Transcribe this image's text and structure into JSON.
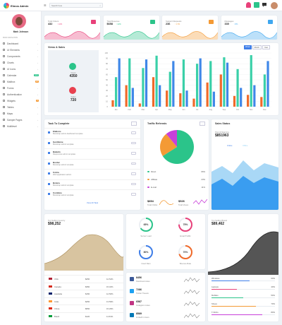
{
  "brand": {
    "name": "Elmos Admin"
  },
  "search": {
    "placeholder": "Search here"
  },
  "user": {
    "name": "Mark Johnson"
  },
  "sidebar": {
    "section": "MAIN NAVIGATION",
    "items": [
      {
        "label": "Dashboard",
        "badge": ""
      },
      {
        "label": "UI Elements",
        "badge": ""
      },
      {
        "label": "Components",
        "badge": ""
      },
      {
        "label": "Charts",
        "badge": ""
      },
      {
        "label": "UI Icons",
        "badge": ""
      },
      {
        "label": "Calendar",
        "badge": "new"
      },
      {
        "label": "Mailbox",
        "badge": "18"
      },
      {
        "label": "Forms",
        "badge": ""
      },
      {
        "label": "Authentication",
        "badge": ""
      },
      {
        "label": "Widgets",
        "badge": "6"
      },
      {
        "label": "Tables",
        "badge": ""
      },
      {
        "label": "Maps",
        "badge": ""
      },
      {
        "label": "Sample Pages",
        "badge": ""
      },
      {
        "label": "Multilevel",
        "badge": ""
      }
    ]
  },
  "stats": [
    {
      "title": "Total Orders",
      "value": "432",
      "change": "↑ 10%",
      "color": "#e8417a"
    },
    {
      "title": "Total Revenue",
      "value": "$658",
      "change": "↑ 22%",
      "color": "#2bc48a"
    },
    {
      "title": "Support Requests",
      "value": "236",
      "change": "↑ 17%",
      "color": "#f49a35"
    },
    {
      "title": "Messages",
      "value": "330",
      "change": "↑ 8%",
      "color": "#3fa7ef"
    }
  ],
  "views": {
    "title": "Views & Sales",
    "tabs": [
      "Week",
      "Month",
      "Year"
    ],
    "views_label": "Views",
    "views_value": "4350",
    "sales_label": "Sales",
    "sales_value": "720",
    "chart_data": {
      "type": "bar",
      "categories": [
        "Jan",
        "Feb",
        "Mar",
        "Apr",
        "May",
        "Jun",
        "Jul",
        "Aug",
        "Sep",
        "Oct",
        "Nov",
        "Dec"
      ],
      "ylim": [
        0,
        100
      ],
      "yticks": [
        0,
        10,
        20,
        30,
        40,
        50,
        60,
        70,
        80,
        90,
        100
      ],
      "series": [
        {
          "color": "#f06a2a",
          "values": [
            12,
            40,
            6,
            55,
            30,
            25,
            15,
            45,
            60,
            20,
            22,
            18
          ]
        },
        {
          "color": "#3ad0a8",
          "values": [
            55,
            90,
            72,
            95,
            65,
            88,
            80,
            85,
            92,
            70,
            96,
            60
          ]
        },
        {
          "color": "#3f87e8",
          "values": [
            90,
            35,
            88,
            40,
            85,
            30,
            90,
            28,
            82,
            35,
            40,
            85
          ]
        }
      ]
    }
  },
  "tasks": {
    "title": "Task To Complete",
    "more": "View All Task",
    "items": [
      {
        "title": "Elalions",
        "desc": "Bootstrap admin dashboard template"
      },
      {
        "title": "Gentileme",
        "desc": "Bootstrap admin template"
      },
      {
        "title": "Bakedo",
        "desc": "Responsive admin template"
      },
      {
        "title": "Bordar",
        "desc": "Bootstrap admin template"
      },
      {
        "title": "Cobra",
        "desc": "Web application admin"
      },
      {
        "title": "Bolens",
        "desc": "Bootstrap admin template"
      },
      {
        "title": "Combine",
        "desc": "Bootstrap admin template"
      }
    ]
  },
  "traffic": {
    "title": "Traffic Referrals",
    "legend": [
      {
        "label": "Direct",
        "value": "66%",
        "color": "#2bc48a"
      },
      {
        "label": "Affiliate",
        "value": "23%",
        "color": "#f49a35"
      },
      {
        "label": "E-mail",
        "value": "11%",
        "color": "#c840d9"
      }
    ],
    "total_value": "$854",
    "total_label": "Total Clicks",
    "rev_value": "$526",
    "rev_label": "Total Views",
    "chart_data": {
      "type": "pie",
      "labels": [
        "Direct",
        "Affiliate",
        "E-mail"
      ],
      "values": [
        66,
        23,
        11
      ]
    }
  },
  "sales_status": {
    "title": "Sales Status",
    "label": "Past All Earning",
    "value": "$851963",
    "legend": [
      "Online",
      "Offline"
    ]
  },
  "country": {
    "label": "Top Selling Country",
    "value": "$98,252",
    "rows": [
      {
        "country": "USA",
        "value": "$250",
        "pct": "12.54%"
      },
      {
        "country": "Canada",
        "value": "$350",
        "pct": "15.32%"
      },
      {
        "country": "Australia",
        "value": "$150",
        "pct": "12.56%"
      },
      {
        "country": "India",
        "value": "$250",
        "pct": "13.59%"
      },
      {
        "country": "China",
        "value": "$550",
        "pct": "15.29%"
      },
      {
        "country": "Brazil",
        "value": "$120",
        "pct": "11.54%"
      }
    ]
  },
  "gauges": [
    {
      "value": "65%",
      "label": "Server Load",
      "pct": 65,
      "color": "#2bc48a"
    },
    {
      "value": "75%",
      "label": "Email Traffic",
      "pct": 75,
      "color": "#e8417a"
    },
    {
      "value": "80%",
      "label": "Used Ram",
      "pct": 80,
      "color": "#3f7ee8"
    },
    {
      "value": "70%",
      "label": "Bounce Rate",
      "pct": 70,
      "color": "#f06a2a"
    }
  ],
  "social": [
    {
      "value": "8456",
      "label": "Facebook Likes",
      "color": "#3b5998"
    },
    {
      "value": "7286",
      "label": "Twitter Tweets",
      "color": "#1da1f2"
    },
    {
      "value": "6587",
      "label": "Instagram Likes",
      "color": "#c13584"
    },
    {
      "value": "8589",
      "label": "LinkedIn Users",
      "color": "#0077b5"
    }
  ],
  "brands": {
    "label": "Top Selling Brand",
    "value": "$89,462",
    "items": [
      {
        "label": "Windows",
        "pct": "60%",
        "fill": 0.6,
        "color": "#3f7ee8"
      },
      {
        "label": "Laptops",
        "pct": "40%",
        "fill": 0.4,
        "color": "#e8417a"
      },
      {
        "label": "Mobiles",
        "pct": "50%",
        "fill": 0.5,
        "color": "#2bc48a"
      },
      {
        "label": "Shoes",
        "pct": "70%",
        "fill": 0.7,
        "color": "#f49a35"
      },
      {
        "label": "T-Shirts",
        "pct": "80%",
        "fill": 0.8,
        "color": "#c840d9"
      }
    ]
  }
}
